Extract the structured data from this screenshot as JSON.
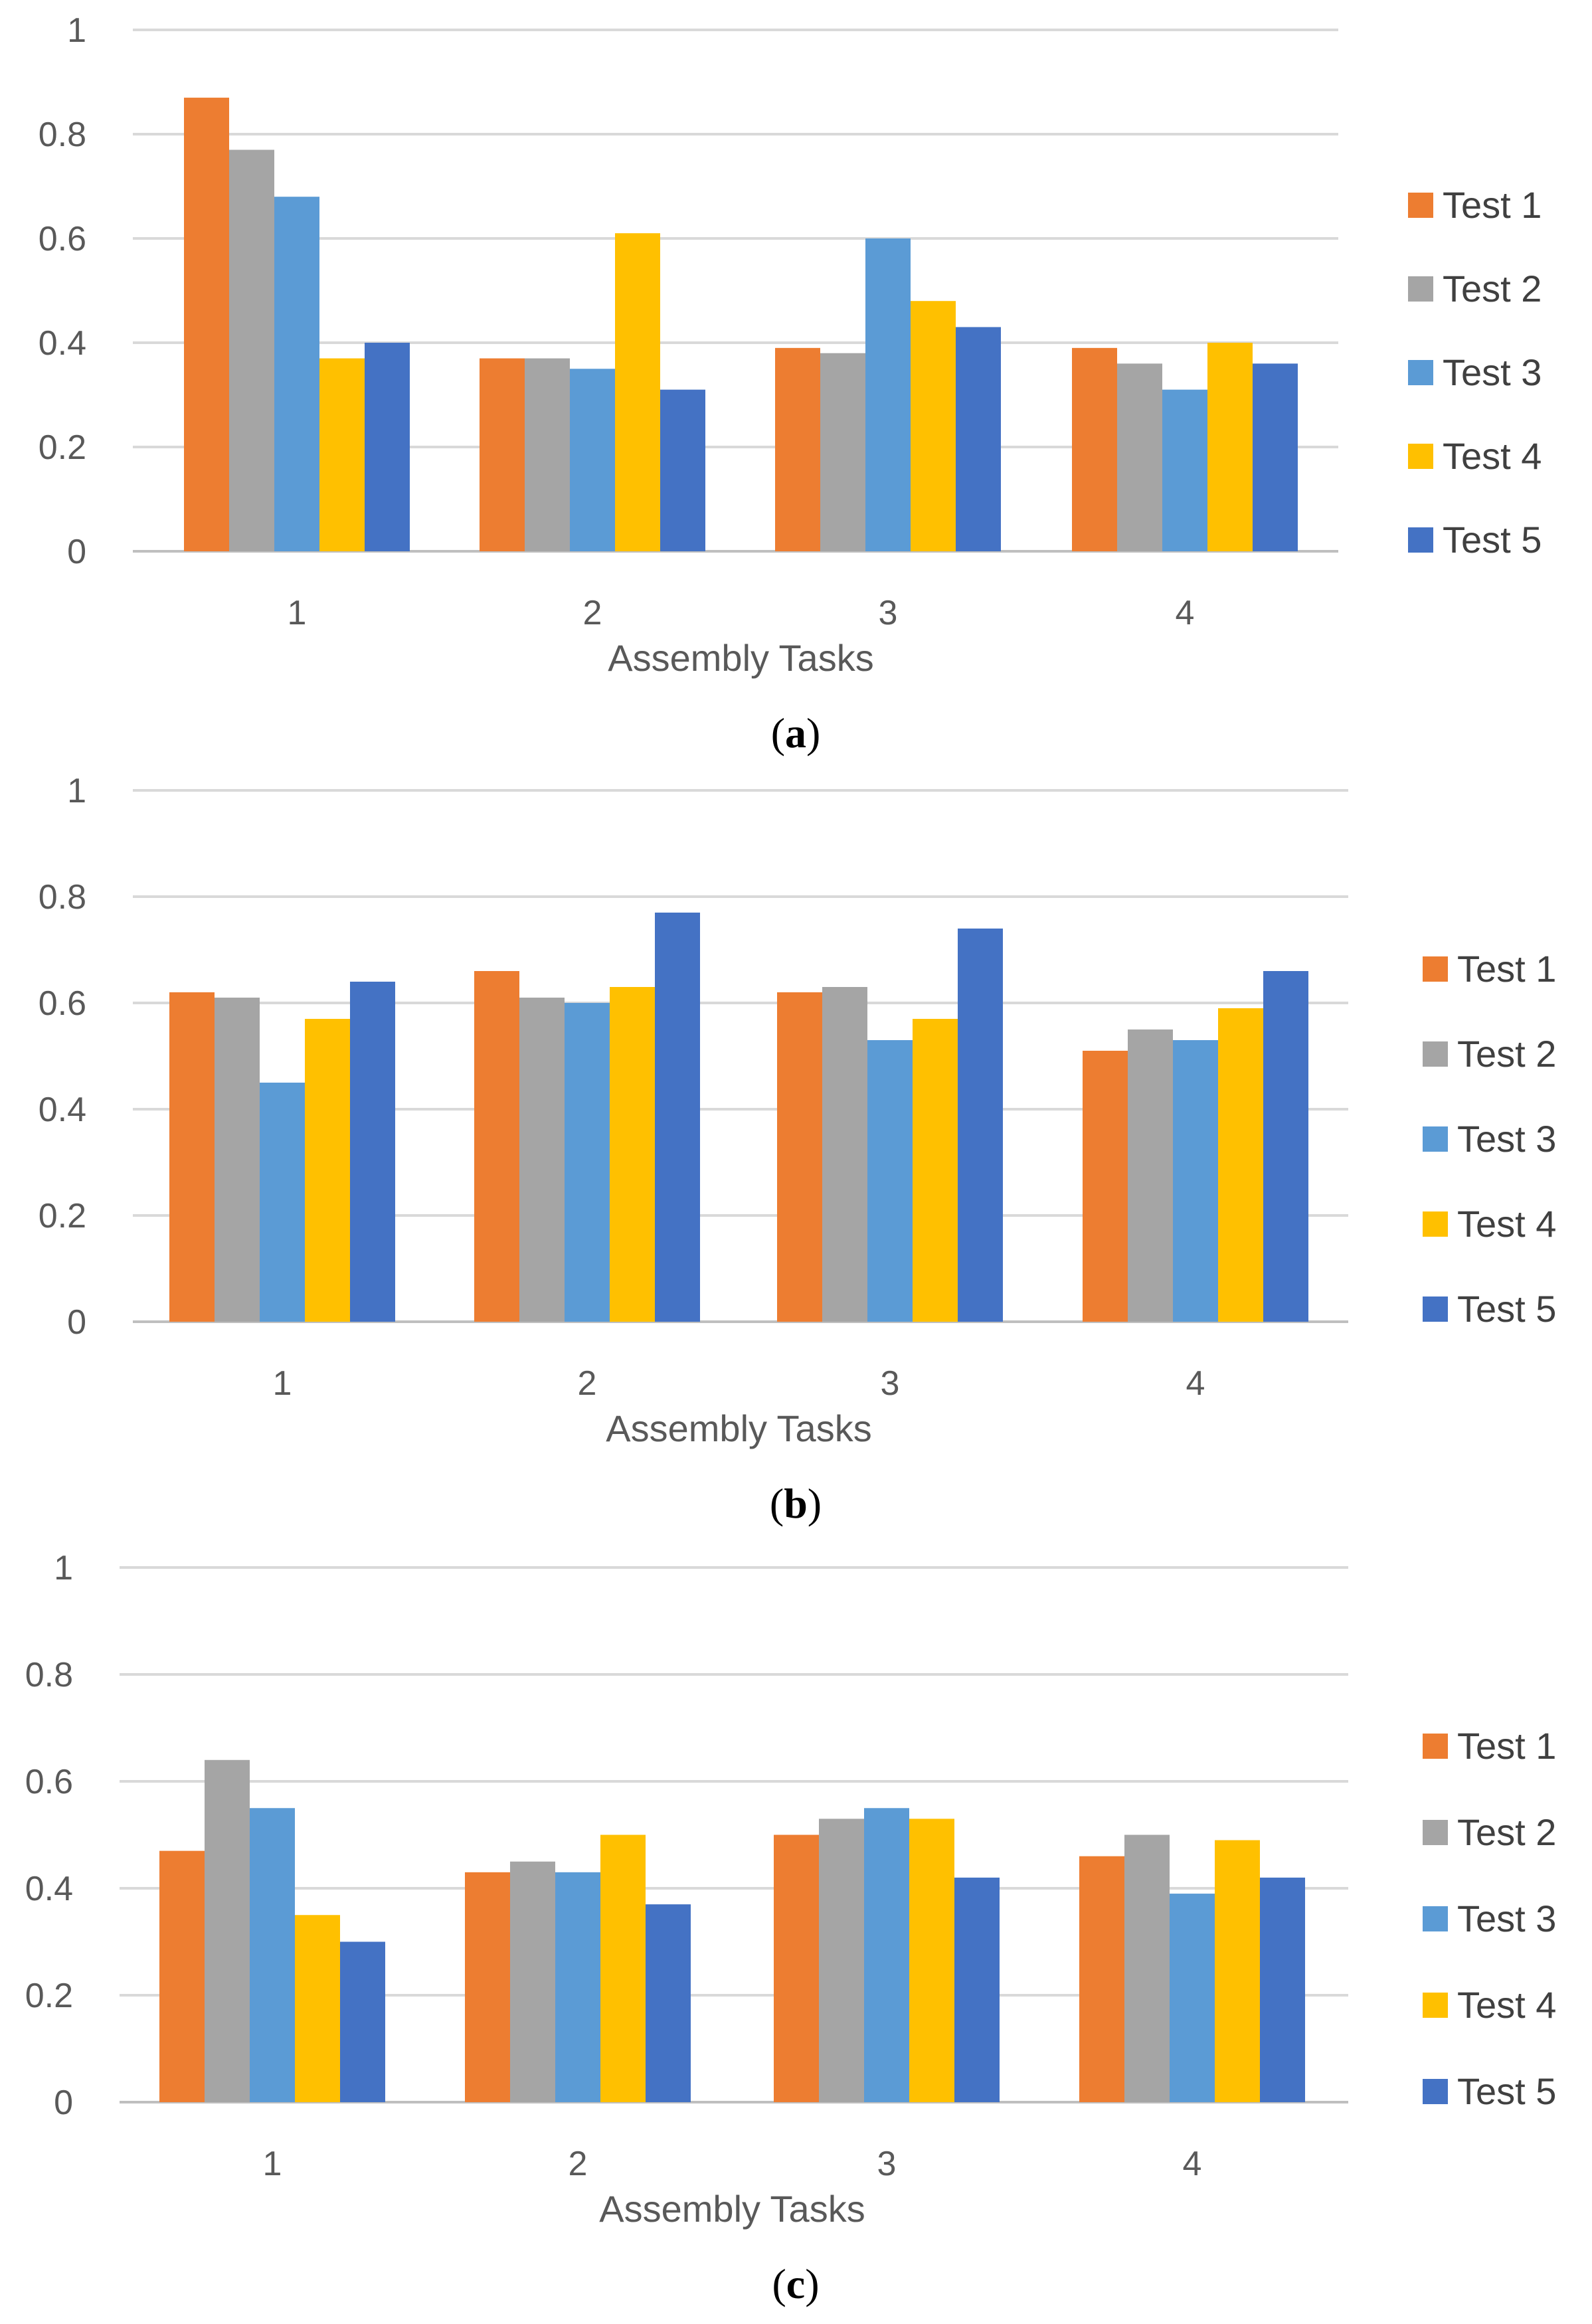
{
  "colors": {
    "Test 1": "#ED7D31",
    "Test 2": "#A5A5A5",
    "Test 3": "#5B9BD5",
    "Test 4": "#FFC000",
    "Test 5": "#4472C4",
    "grid": "#D9D9D9",
    "text": "#595959"
  },
  "chart_data": [
    {
      "type": "bar",
      "caption_letter": "a",
      "categories": [
        "1",
        "2",
        "3",
        "4"
      ],
      "xlabel": "Assembly Tasks",
      "ylabel": "",
      "ylim": [
        0,
        1
      ],
      "yticks": [
        "0",
        "0.2",
        "0.4",
        "0.6",
        "0.8",
        "1"
      ],
      "grid": true,
      "legend": "right",
      "series": [
        {
          "name": "Test 1",
          "values": [
            0.87,
            0.37,
            0.39,
            0.39
          ]
        },
        {
          "name": "Test 2",
          "values": [
            0.77,
            0.37,
            0.38,
            0.36
          ]
        },
        {
          "name": "Test 3",
          "values": [
            0.68,
            0.35,
            0.6,
            0.31
          ]
        },
        {
          "name": "Test 4",
          "values": [
            0.37,
            0.61,
            0.48,
            0.4
          ]
        },
        {
          "name": "Test 5",
          "values": [
            0.4,
            0.31,
            0.43,
            0.36
          ]
        }
      ]
    },
    {
      "type": "bar",
      "caption_letter": "b",
      "categories": [
        "1",
        "2",
        "3",
        "4"
      ],
      "xlabel": "Assembly Tasks",
      "ylabel": "",
      "ylim": [
        0,
        1
      ],
      "yticks": [
        "0",
        "0.2",
        "0.4",
        "0.6",
        "0.8",
        "1"
      ],
      "grid": true,
      "legend": "right",
      "series": [
        {
          "name": "Test 1",
          "values": [
            0.62,
            0.66,
            0.62,
            0.51
          ]
        },
        {
          "name": "Test 2",
          "values": [
            0.61,
            0.61,
            0.63,
            0.55
          ]
        },
        {
          "name": "Test 3",
          "values": [
            0.45,
            0.6,
            0.53,
            0.53
          ]
        },
        {
          "name": "Test 4",
          "values": [
            0.57,
            0.63,
            0.57,
            0.59
          ]
        },
        {
          "name": "Test 5",
          "values": [
            0.64,
            0.77,
            0.74,
            0.66
          ]
        }
      ]
    },
    {
      "type": "bar",
      "caption_letter": "c",
      "categories": [
        "1",
        "2",
        "3",
        "4"
      ],
      "xlabel": "Assembly Tasks",
      "ylabel": "",
      "ylim": [
        0,
        1
      ],
      "yticks": [
        "0",
        "0.2",
        "0.4",
        "0.6",
        "0.8",
        "1"
      ],
      "grid": true,
      "legend": "right",
      "series": [
        {
          "name": "Test 1",
          "values": [
            0.47,
            0.43,
            0.5,
            0.46
          ]
        },
        {
          "name": "Test 2",
          "values": [
            0.64,
            0.45,
            0.53,
            0.5
          ]
        },
        {
          "name": "Test 3",
          "values": [
            0.55,
            0.43,
            0.55,
            0.39
          ]
        },
        {
          "name": "Test 4",
          "values": [
            0.35,
            0.5,
            0.53,
            0.49
          ]
        },
        {
          "name": "Test 5",
          "values": [
            0.3,
            0.37,
            0.42,
            0.42
          ]
        }
      ]
    }
  ]
}
